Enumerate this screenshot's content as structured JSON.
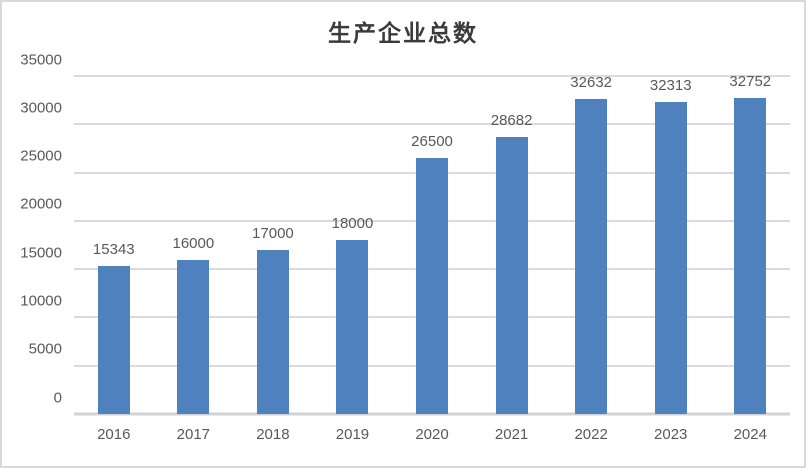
{
  "window": {
    "background": "#FFFFFF",
    "border_color": "#D9D9D9"
  },
  "chart_data": {
    "type": "bar",
    "title": "生产企业总数",
    "categories": [
      "2016",
      "2017",
      "2018",
      "2019",
      "2020",
      "2021",
      "2022",
      "2023",
      "2024"
    ],
    "values": [
      15343,
      16000,
      17000,
      18000,
      26500,
      28682,
      32632,
      32313,
      32752
    ],
    "data_labels": [
      "15343",
      "16000",
      "17000",
      "18000",
      "26500",
      "28682",
      "32632",
      "32313",
      "32752"
    ],
    "xlabel": "",
    "ylabel": "",
    "ylim": [
      0,
      35000
    ],
    "ytick_interval": 5000,
    "yticks": [
      0,
      5000,
      10000,
      15000,
      20000,
      25000,
      30000,
      35000
    ],
    "ytick_labels": [
      "0",
      "5000",
      "10000",
      "15000",
      "20000",
      "25000",
      "30000",
      "35000"
    ],
    "grid": "horizontal",
    "legend": "none",
    "colors": {
      "bar": "#4E81BD",
      "gridline": "#DBDBDB",
      "axis_line": "#D2D2D2",
      "tick_label": "#595959",
      "data_label": "#595959",
      "title": "#3B3B3B"
    }
  }
}
